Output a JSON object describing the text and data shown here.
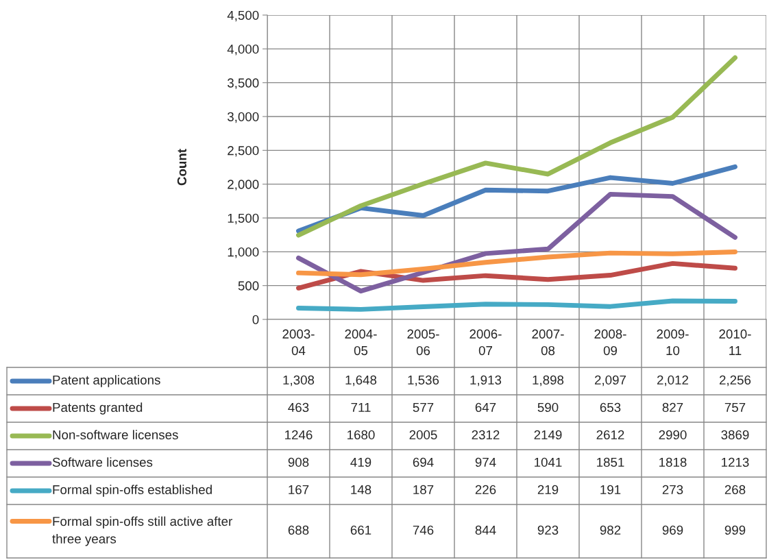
{
  "chart_data": {
    "type": "line",
    "ylabel": "Count",
    "categories": [
      "2003-04",
      "2004-05",
      "2005-06",
      "2006-07",
      "2007-08",
      "2008-09",
      "2009-10",
      "2010-11"
    ],
    "ylim": [
      0,
      4500
    ],
    "yticks": [
      0,
      500,
      {
        "value": 1000,
        "label": "1,000"
      },
      {
        "value": 1500,
        "label": "1,500"
      },
      {
        "value": 2000,
        "label": "2,000"
      },
      {
        "value": 2500,
        "label": "2,500"
      },
      {
        "value": 3000,
        "label": "3,000"
      },
      {
        "value": 3500,
        "label": "3,500"
      },
      {
        "value": 4000,
        "label": "4,000"
      },
      {
        "value": 4500,
        "label": "4,500"
      }
    ],
    "grid": true,
    "legend": "bottom",
    "data_labels": true,
    "marker": "none",
    "line_style": "solid",
    "series": [
      {
        "name": "Patent applications",
        "color": "#4a7ebb",
        "values": [
          1308,
          1648,
          1536,
          1913,
          1898,
          2097,
          2012,
          2256
        ],
        "value_labels": [
          "1,308",
          "1,648",
          "1,536",
          "1,913",
          "1,898",
          "2,097",
          "2,012",
          "2,256"
        ]
      },
      {
        "name": "Patents granted",
        "color": "#be4b48",
        "values": [
          463,
          711,
          577,
          647,
          590,
          653,
          827,
          757
        ]
      },
      {
        "name": "Non-software licenses",
        "color": "#98b954",
        "values": [
          1246,
          1680,
          2005,
          2312,
          2149,
          2612,
          2990,
          3869
        ]
      },
      {
        "name": "Software licenses",
        "color": "#7d60a0",
        "values": [
          908,
          419,
          694,
          974,
          1041,
          1851,
          1818,
          1213
        ]
      },
      {
        "name": "Formal spin-offs established",
        "color": "#46aac5",
        "values": [
          167,
          148,
          187,
          226,
          219,
          191,
          273,
          268
        ]
      },
      {
        "name": "Formal spin-offs still active after three years",
        "color": "#f79646",
        "values": [
          688,
          661,
          746,
          844,
          923,
          982,
          969,
          999
        ]
      }
    ]
  }
}
